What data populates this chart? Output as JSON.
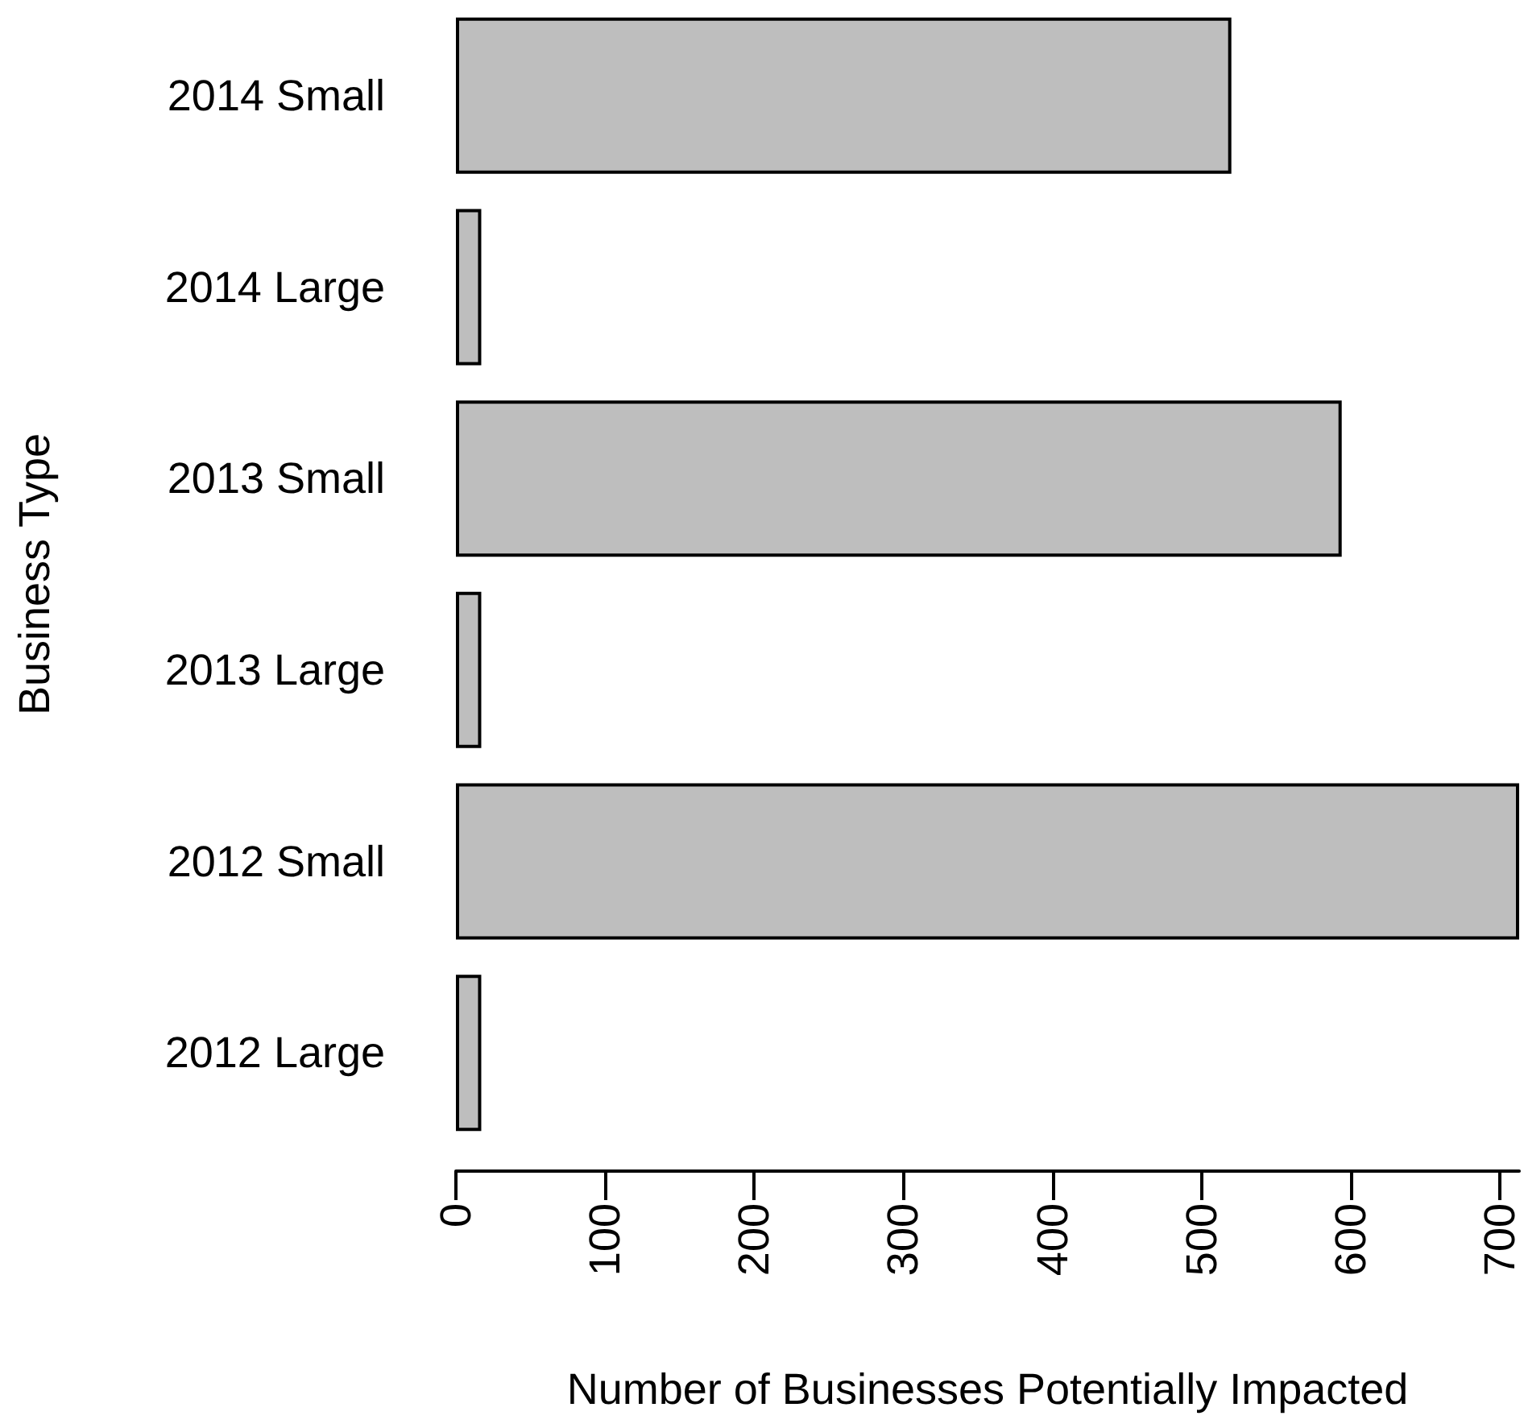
{
  "chart_data": {
    "type": "bar",
    "orientation": "horizontal",
    "xlabel": "Number of Businesses Potentially Impacted",
    "ylabel": "Business Type",
    "categories": [
      "2014 Small",
      "2014 Large",
      "2013 Small",
      "2013 Large",
      "2012 Small",
      "2012 Large"
    ],
    "values": [
      520,
      17,
      594,
      17,
      713,
      17
    ],
    "color": "#bebebe",
    "xlim": [
      0,
      713
    ],
    "xticks": [
      0,
      100,
      200,
      300,
      400,
      500,
      600,
      700
    ],
    "grid": false
  }
}
